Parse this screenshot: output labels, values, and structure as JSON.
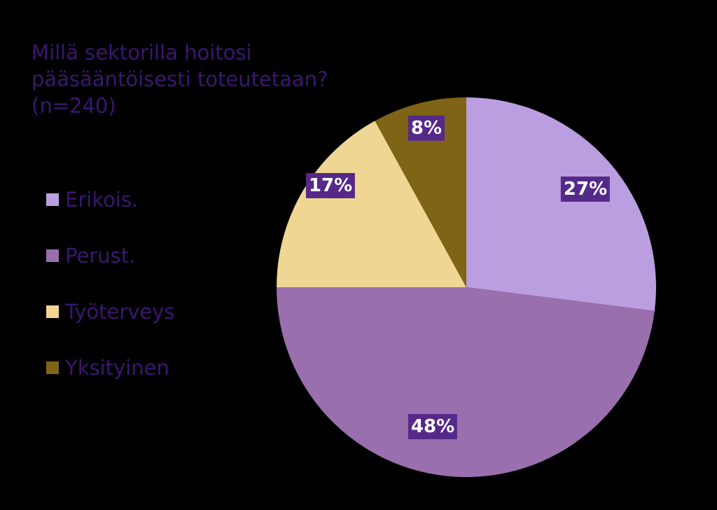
{
  "title": {
    "lines": [
      "Millä sektorilla hoitosi",
      "pääsääntöisesti toteutetaan?",
      "(n=240)"
    ]
  },
  "legend": {
    "items": [
      {
        "label": "Erikois.",
        "color": "#bb9ee0"
      },
      {
        "label": "Perust.",
        "color": "#9a6fae"
      },
      {
        "label": "Työterveys",
        "color": "#efd693"
      },
      {
        "label": "Yksityinen",
        "color": "#7f6316"
      }
    ]
  },
  "labels": {
    "erikois": "27%",
    "perust": "48%",
    "tyoterveys": "17%",
    "yksityinen": "8%"
  },
  "colors": {
    "title": "#3b1670",
    "label_bg": "#55298a",
    "label_text": "#ffffff",
    "background": "#000000"
  },
  "chart_data": {
    "type": "pie",
    "title": "Millä sektorilla hoitosi pääsääntöisesti toteutetaan? (n=240)",
    "categories": [
      "Erikois.",
      "Perust.",
      "Työterveys",
      "Yksityinen"
    ],
    "values": [
      27,
      48,
      17,
      8
    ],
    "unit": "%",
    "colors": [
      "#bb9ee0",
      "#9a6fae",
      "#efd693",
      "#7f6316"
    ],
    "start_angle": "12 o'clock",
    "direction": "clockwise",
    "legend_position": "left",
    "data_labels": true
  }
}
